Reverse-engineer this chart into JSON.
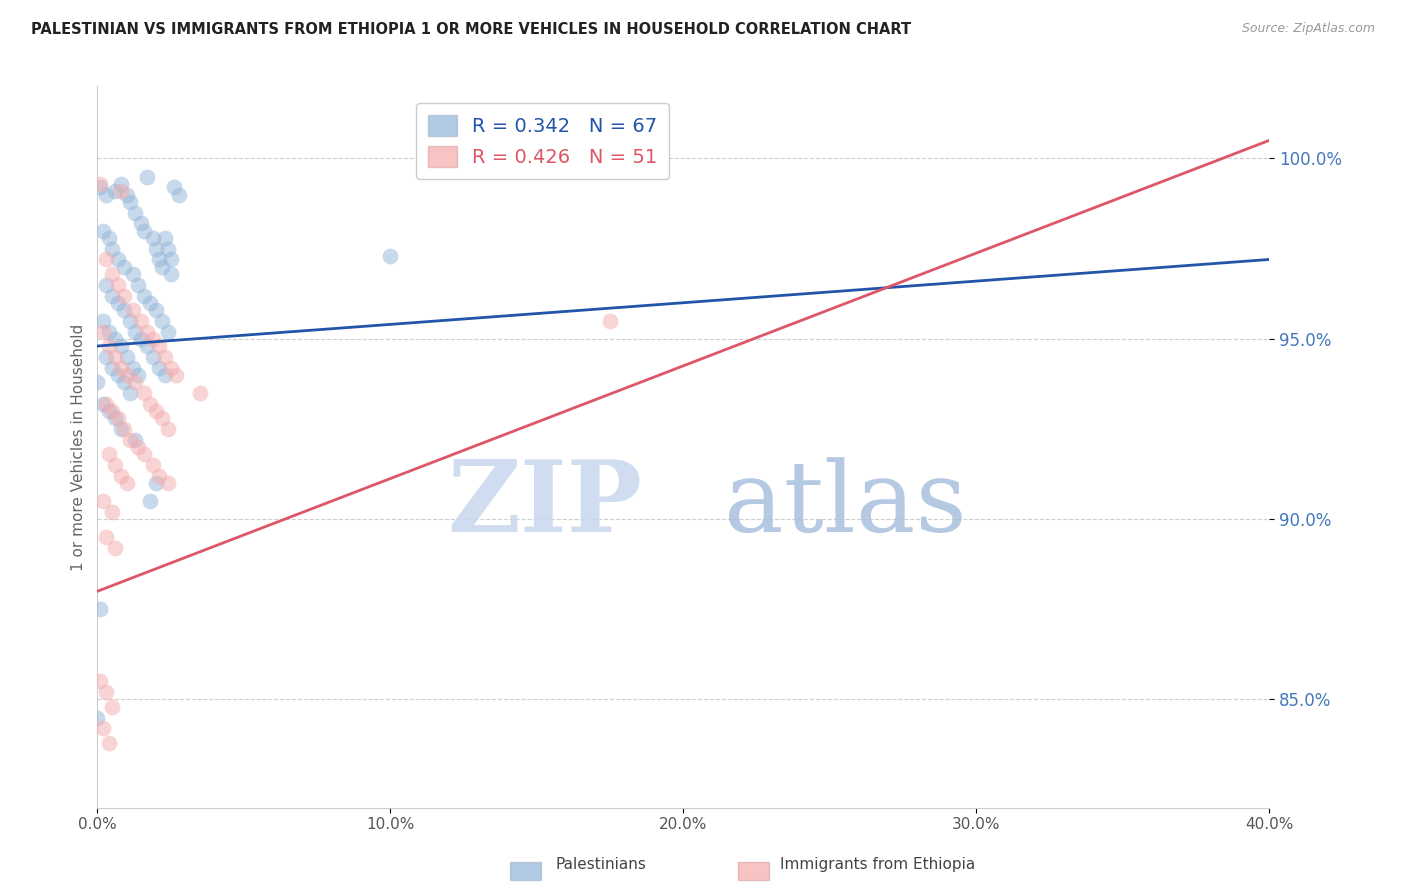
{
  "title": "PALESTINIAN VS IMMIGRANTS FROM ETHIOPIA 1 OR MORE VEHICLES IN HOUSEHOLD CORRELATION CHART",
  "source": "Source: ZipAtlas.com",
  "ylabel": "1 or more Vehicles in Household",
  "xlim": [
    0.0,
    40.0
  ],
  "ylim": [
    82.0,
    102.0
  ],
  "yticks": [
    85.0,
    90.0,
    95.0,
    100.0
  ],
  "xticks": [
    0.0,
    10.0,
    20.0,
    30.0,
    40.0
  ],
  "xtick_labels": [
    "0.0%",
    "10.0%",
    "20.0%",
    "30.0%",
    "40.0%"
  ],
  "ytick_labels": [
    "85.0%",
    "90.0%",
    "95.0%",
    "100.0%"
  ],
  "blue_R": 0.342,
  "blue_N": 67,
  "pink_R": 0.426,
  "pink_N": 51,
  "legend_labels": [
    "Palestinians",
    "Immigrants from Ethiopia"
  ],
  "blue_color": "#92B4D9",
  "pink_color": "#F4AAAA",
  "blue_line_color": "#2255AA",
  "pink_line_color": "#DD5566",
  "watermark_zip": "ZIP",
  "watermark_atlas": "atlas",
  "background_color": "#FFFFFF",
  "blue_line": [
    0.0,
    94.8,
    40.0,
    97.2
  ],
  "pink_line": [
    0.0,
    88.0,
    40.0,
    100.5
  ],
  "blue_points": [
    [
      0.1,
      99.2
    ],
    [
      0.3,
      99.0
    ],
    [
      0.6,
      99.1
    ],
    [
      0.8,
      99.3
    ],
    [
      1.0,
      99.0
    ],
    [
      1.1,
      98.8
    ],
    [
      1.3,
      98.5
    ],
    [
      1.5,
      98.2
    ],
    [
      1.6,
      98.0
    ],
    [
      1.7,
      99.5
    ],
    [
      1.9,
      97.8
    ],
    [
      2.0,
      97.5
    ],
    [
      2.1,
      97.2
    ],
    [
      2.2,
      97.0
    ],
    [
      2.3,
      97.8
    ],
    [
      2.4,
      97.5
    ],
    [
      2.5,
      97.2
    ],
    [
      2.6,
      99.2
    ],
    [
      2.8,
      99.0
    ],
    [
      0.2,
      98.0
    ],
    [
      0.4,
      97.8
    ],
    [
      0.5,
      97.5
    ],
    [
      0.7,
      97.2
    ],
    [
      0.9,
      97.0
    ],
    [
      1.2,
      96.8
    ],
    [
      1.4,
      96.5
    ],
    [
      1.6,
      96.2
    ],
    [
      1.8,
      96.0
    ],
    [
      2.0,
      95.8
    ],
    [
      2.2,
      95.5
    ],
    [
      2.4,
      95.2
    ],
    [
      0.3,
      96.5
    ],
    [
      0.5,
      96.2
    ],
    [
      0.7,
      96.0
    ],
    [
      0.9,
      95.8
    ],
    [
      1.1,
      95.5
    ],
    [
      1.3,
      95.2
    ],
    [
      1.5,
      95.0
    ],
    [
      1.7,
      94.8
    ],
    [
      1.9,
      94.5
    ],
    [
      2.1,
      94.2
    ],
    [
      2.3,
      94.0
    ],
    [
      0.2,
      95.5
    ],
    [
      0.4,
      95.2
    ],
    [
      0.6,
      95.0
    ],
    [
      0.8,
      94.8
    ],
    [
      1.0,
      94.5
    ],
    [
      1.2,
      94.2
    ],
    [
      1.4,
      94.0
    ],
    [
      0.3,
      94.5
    ],
    [
      0.5,
      94.2
    ],
    [
      0.7,
      94.0
    ],
    [
      0.9,
      93.8
    ],
    [
      1.1,
      93.5
    ],
    [
      0.2,
      93.2
    ],
    [
      0.4,
      93.0
    ],
    [
      0.0,
      93.8
    ],
    [
      0.1,
      87.5
    ],
    [
      0.0,
      84.5
    ],
    [
      10.0,
      97.3
    ],
    [
      2.5,
      96.8
    ],
    [
      0.6,
      92.8
    ],
    [
      0.8,
      92.5
    ],
    [
      1.3,
      92.2
    ],
    [
      2.0,
      91.0
    ],
    [
      1.8,
      90.5
    ]
  ],
  "pink_points": [
    [
      0.1,
      99.3
    ],
    [
      0.8,
      99.1
    ],
    [
      0.3,
      97.2
    ],
    [
      0.5,
      96.8
    ],
    [
      0.7,
      96.5
    ],
    [
      0.9,
      96.2
    ],
    [
      1.2,
      95.8
    ],
    [
      1.5,
      95.5
    ],
    [
      1.7,
      95.2
    ],
    [
      1.9,
      95.0
    ],
    [
      2.1,
      94.8
    ],
    [
      2.3,
      94.5
    ],
    [
      2.5,
      94.2
    ],
    [
      2.7,
      94.0
    ],
    [
      0.2,
      95.2
    ],
    [
      0.4,
      94.8
    ],
    [
      0.6,
      94.5
    ],
    [
      0.8,
      94.2
    ],
    [
      1.0,
      94.0
    ],
    [
      1.3,
      93.8
    ],
    [
      1.6,
      93.5
    ],
    [
      1.8,
      93.2
    ],
    [
      2.0,
      93.0
    ],
    [
      2.2,
      92.8
    ],
    [
      2.4,
      92.5
    ],
    [
      0.3,
      93.2
    ],
    [
      0.5,
      93.0
    ],
    [
      0.7,
      92.8
    ],
    [
      0.9,
      92.5
    ],
    [
      1.1,
      92.2
    ],
    [
      1.4,
      92.0
    ],
    [
      1.6,
      91.8
    ],
    [
      1.9,
      91.5
    ],
    [
      2.1,
      91.2
    ],
    [
      2.4,
      91.0
    ],
    [
      0.4,
      91.8
    ],
    [
      0.6,
      91.5
    ],
    [
      0.8,
      91.2
    ],
    [
      1.0,
      91.0
    ],
    [
      0.2,
      90.5
    ],
    [
      0.5,
      90.2
    ],
    [
      0.3,
      89.5
    ],
    [
      0.6,
      89.2
    ],
    [
      0.1,
      85.5
    ],
    [
      0.3,
      85.2
    ],
    [
      0.5,
      84.8
    ],
    [
      0.2,
      84.2
    ],
    [
      0.4,
      83.8
    ],
    [
      3.5,
      93.5
    ],
    [
      17.5,
      95.5
    ]
  ]
}
